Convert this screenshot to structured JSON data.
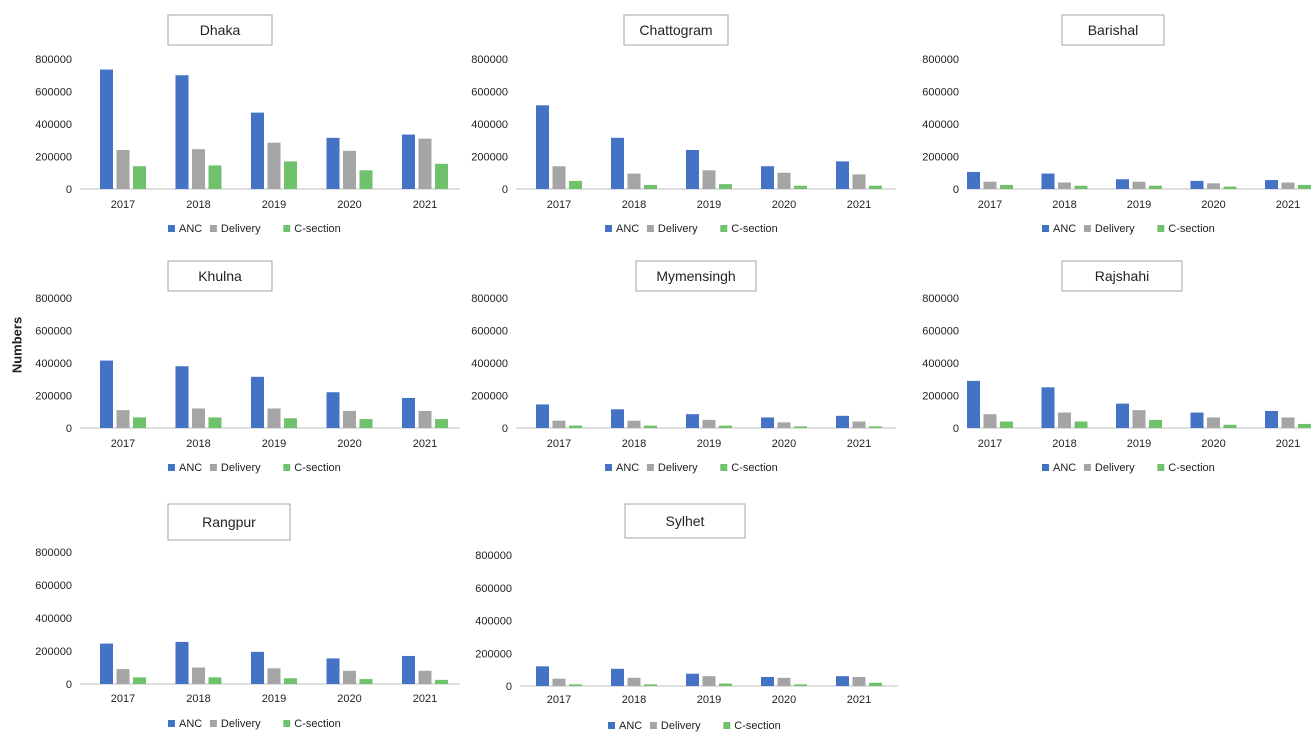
{
  "y_axis_label": "Numbers",
  "colors": {
    "ANC": "#4472c4",
    "Delivery": "#a5a5a5",
    "C-section": "#70c16b"
  },
  "chart_data": [
    {
      "type": "bar",
      "title": "Dhaka",
      "categories": [
        "2017",
        "2018",
        "2019",
        "2020",
        "2021"
      ],
      "ylim": [
        0,
        800000
      ],
      "yticks": [
        "0",
        "200000",
        "400000",
        "600000",
        "800000"
      ],
      "series": [
        {
          "name": "ANC",
          "values": [
            735000,
            700000,
            470000,
            315000,
            335000
          ]
        },
        {
          "name": "Delivery",
          "values": [
            240000,
            245000,
            285000,
            235000,
            310000
          ]
        },
        {
          "name": "C-section",
          "values": [
            140000,
            145000,
            170000,
            115000,
            155000
          ]
        }
      ],
      "legend": "bottom"
    },
    {
      "type": "bar",
      "title": "Chattogram",
      "categories": [
        "2017",
        "2018",
        "2019",
        "2020",
        "2021"
      ],
      "ylim": [
        0,
        800000
      ],
      "yticks": [
        "0",
        "200000",
        "400000",
        "600000",
        "800000"
      ],
      "series": [
        {
          "name": "ANC",
          "values": [
            515000,
            315000,
            240000,
            140000,
            170000
          ]
        },
        {
          "name": "Delivery",
          "values": [
            140000,
            95000,
            115000,
            100000,
            90000
          ]
        },
        {
          "name": "C-section",
          "values": [
            50000,
            25000,
            30000,
            20000,
            20000
          ]
        }
      ],
      "legend": "bottom"
    },
    {
      "type": "bar",
      "title": "Barishal",
      "categories": [
        "2017",
        "2018",
        "2019",
        "2020",
        "2021"
      ],
      "ylim": [
        0,
        800000
      ],
      "yticks": [
        "0",
        "200000",
        "400000",
        "600000",
        "800000"
      ],
      "series": [
        {
          "name": "ANC",
          "values": [
            105000,
            95000,
            60000,
            50000,
            55000
          ]
        },
        {
          "name": "Delivery",
          "values": [
            45000,
            40000,
            45000,
            35000,
            40000
          ]
        },
        {
          "name": "C-section",
          "values": [
            25000,
            20000,
            20000,
            15000,
            25000
          ]
        }
      ],
      "legend": "bottom"
    },
    {
      "type": "bar",
      "title": "Khulna",
      "categories": [
        "2017",
        "2018",
        "2019",
        "2020",
        "2021"
      ],
      "ylim": [
        0,
        800000
      ],
      "yticks": [
        "0",
        "200000",
        "400000",
        "600000",
        "800000"
      ],
      "series": [
        {
          "name": "ANC",
          "values": [
            415000,
            380000,
            315000,
            220000,
            185000
          ]
        },
        {
          "name": "Delivery",
          "values": [
            110000,
            120000,
            120000,
            105000,
            105000
          ]
        },
        {
          "name": "C-section",
          "values": [
            65000,
            65000,
            60000,
            55000,
            55000
          ]
        }
      ],
      "legend": "bottom"
    },
    {
      "type": "bar",
      "title": "Mymensingh",
      "categories": [
        "2017",
        "2018",
        "2019",
        "2020",
        "2021"
      ],
      "ylim": [
        0,
        800000
      ],
      "yticks": [
        "0",
        "200000",
        "400000",
        "600000",
        "800000"
      ],
      "series": [
        {
          "name": "ANC",
          "values": [
            145000,
            115000,
            85000,
            65000,
            75000
          ]
        },
        {
          "name": "Delivery",
          "values": [
            45000,
            45000,
            50000,
            35000,
            40000
          ]
        },
        {
          "name": "C-section",
          "values": [
            15000,
            15000,
            15000,
            10000,
            10000
          ]
        }
      ],
      "legend": "bottom"
    },
    {
      "type": "bar",
      "title": "Rajshahi",
      "categories": [
        "2017",
        "2018",
        "2019",
        "2020",
        "2021"
      ],
      "ylim": [
        0,
        800000
      ],
      "yticks": [
        "0",
        "200000",
        "400000",
        "600000",
        "800000"
      ],
      "series": [
        {
          "name": "ANC",
          "values": [
            290000,
            250000,
            150000,
            95000,
            105000
          ]
        },
        {
          "name": "Delivery",
          "values": [
            85000,
            95000,
            110000,
            65000,
            65000
          ]
        },
        {
          "name": "C-section",
          "values": [
            40000,
            40000,
            50000,
            20000,
            25000
          ]
        }
      ],
      "legend": "bottom"
    },
    {
      "type": "bar",
      "title": "Rangpur",
      "categories": [
        "2017",
        "2018",
        "2019",
        "2020",
        "2021"
      ],
      "ylim": [
        0,
        800000
      ],
      "yticks": [
        "0",
        "200000",
        "400000",
        "600000",
        "800000"
      ],
      "series": [
        {
          "name": "ANC",
          "values": [
            245000,
            255000,
            195000,
            155000,
            170000
          ]
        },
        {
          "name": "Delivery",
          "values": [
            90000,
            100000,
            95000,
            80000,
            80000
          ]
        },
        {
          "name": "C-section",
          "values": [
            40000,
            40000,
            35000,
            30000,
            25000
          ]
        }
      ],
      "legend": "bottom"
    },
    {
      "type": "bar",
      "title": "Sylhet",
      "categories": [
        "2017",
        "2018",
        "2019",
        "2020",
        "2021"
      ],
      "ylim": [
        0,
        800000
      ],
      "yticks": [
        "0",
        "200000",
        "400000",
        "600000",
        "800000"
      ],
      "series": [
        {
          "name": "ANC",
          "values": [
            120000,
            105000,
            75000,
            55000,
            60000
          ]
        },
        {
          "name": "Delivery",
          "values": [
            45000,
            50000,
            60000,
            50000,
            55000
          ]
        },
        {
          "name": "C-section",
          "values": [
            10000,
            10000,
            15000,
            10000,
            20000
          ]
        }
      ],
      "legend": "bottom"
    }
  ]
}
